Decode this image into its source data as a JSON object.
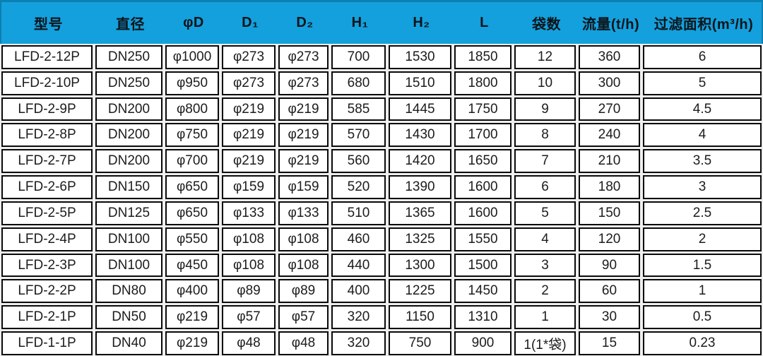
{
  "colors": {
    "header_bg": "#14a0dc",
    "header_border": "#0c7fb3",
    "cell_border": "#0a0a0a",
    "cell_bg": "#ffffff",
    "text": "#1c1c1c"
  },
  "table": {
    "column_ids": [
      "model",
      "diameter",
      "phi-d",
      "d1",
      "d2",
      "h1",
      "h2",
      "l",
      "bag-count",
      "flow-rate",
      "filter-area"
    ],
    "columns": [
      "型号",
      "直径",
      "φD",
      "D₁",
      "D₂",
      "H₁",
      "H₂",
      "L",
      "袋数",
      "流量(t/h)",
      "过滤面积(m³/h)"
    ],
    "rows": [
      [
        "LFD-2-12P",
        "DN250",
        "φ1000",
        "φ273",
        "φ273",
        "700",
        "1530",
        "1850",
        "12",
        "360",
        "6"
      ],
      [
        "LFD-2-10P",
        "DN250",
        "φ950",
        "φ273",
        "φ273",
        "680",
        "1510",
        "1800",
        "10",
        "300",
        "5"
      ],
      [
        "LFD-2-9P",
        "DN200",
        "φ800",
        "φ219",
        "φ219",
        "585",
        "1445",
        "1750",
        "9",
        "270",
        "4.5"
      ],
      [
        "LFD-2-8P",
        "DN200",
        "φ750",
        "φ219",
        "φ219",
        "570",
        "1430",
        "1700",
        "8",
        "240",
        "4"
      ],
      [
        "LFD-2-7P",
        "DN200",
        "φ700",
        "φ219",
        "φ219",
        "560",
        "1420",
        "1650",
        "7",
        "210",
        "3.5"
      ],
      [
        "LFD-2-6P",
        "DN150",
        "φ650",
        "φ159",
        "φ159",
        "520",
        "1390",
        "1600",
        "6",
        "180",
        "3"
      ],
      [
        "LFD-2-5P",
        "DN125",
        "φ650",
        "φ133",
        "φ133",
        "510",
        "1365",
        "1600",
        "5",
        "150",
        "2.5"
      ],
      [
        "LFD-2-4P",
        "DN100",
        "φ550",
        "φ108",
        "φ108",
        "460",
        "1325",
        "1550",
        "4",
        "120",
        "2"
      ],
      [
        "LFD-2-3P",
        "DN100",
        "φ450",
        "φ108",
        "φ108",
        "440",
        "1300",
        "1500",
        "3",
        "90",
        "1.5"
      ],
      [
        "LFD-2-2P",
        "DN80",
        "φ400",
        "φ89",
        "φ89",
        "400",
        "1225",
        "1450",
        "2",
        "60",
        "1"
      ],
      [
        "LFD-2-1P",
        "DN50",
        "φ219",
        "φ57",
        "φ57",
        "320",
        "1150",
        "1310",
        "1",
        "30",
        "0.5"
      ],
      [
        "LFD-1-1P",
        "DN40",
        "φ219",
        "φ48",
        "φ48",
        "320",
        "750",
        "900",
        "1(1*袋)",
        "15",
        "0.23"
      ]
    ]
  }
}
